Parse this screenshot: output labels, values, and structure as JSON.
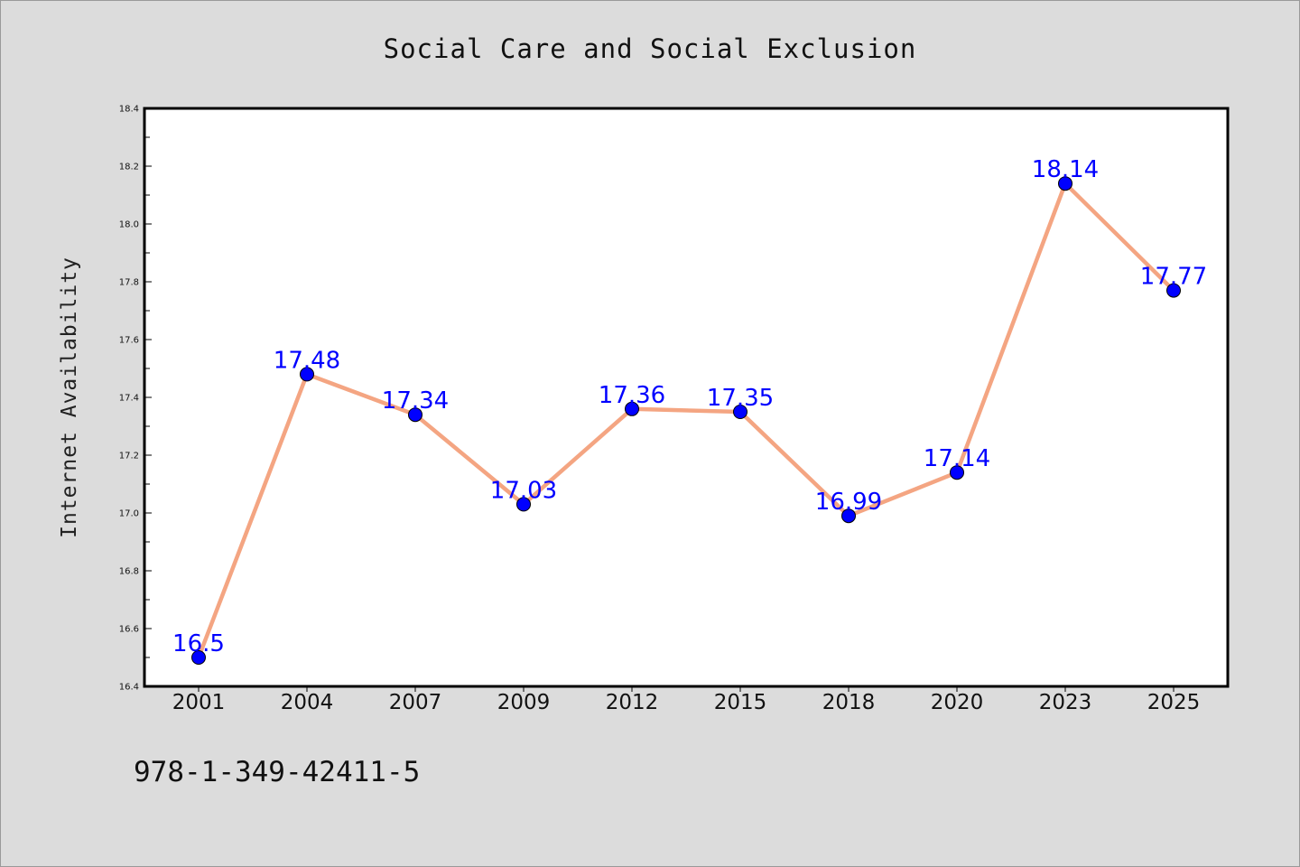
{
  "chart_data": {
    "type": "line",
    "title": "Social Care and Social Exclusion",
    "xlabel": "",
    "ylabel": "Internet Availability",
    "categories": [
      "2001",
      "2004",
      "2007",
      "2009",
      "2012",
      "2015",
      "2018",
      "2020",
      "2023",
      "2025"
    ],
    "series": [
      {
        "values": [
          16.5,
          17.48,
          17.34,
          17.03,
          17.36,
          17.35,
          16.99,
          17.14,
          18.14,
          17.77
        ],
        "labels": [
          "16.5",
          "17.48",
          "17.34",
          "17.03",
          "17.36",
          "17.35",
          "16.99",
          "17.14",
          "18.14",
          "17.77"
        ]
      }
    ],
    "ylim": [
      16.4,
      18.4
    ],
    "yticks": [
      "16.4",
      "16.6",
      "16.8",
      "17.0",
      "17.2",
      "17.4",
      "17.6",
      "17.8",
      "18.0",
      "18.2",
      "18.4"
    ],
    "grid": false,
    "legend": "none",
    "colors": {
      "line": "#f4a582",
      "marker": "#0000ff",
      "label": "#0000ff",
      "background": "#dcdcdc",
      "plot_background": "#ffffff"
    }
  },
  "footnote": "978-1-349-42411-5"
}
